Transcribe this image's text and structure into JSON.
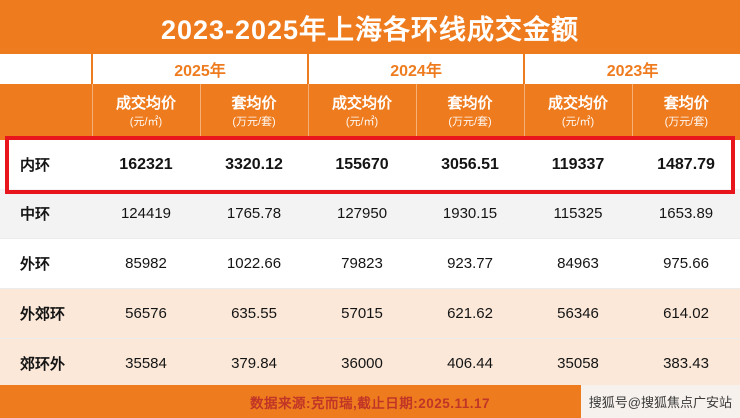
{
  "title": "2023-2025年上海各环线成交金额",
  "colors": {
    "accent_orange": "#ee7c1f",
    "highlight_red": "#e8151c",
    "footer_text_red": "#c13527",
    "row_tint": "#fbe8d9"
  },
  "chart_data": {
    "type": "table",
    "title": "2023-2025年上海各环线成交金额",
    "year_groups": [
      "2025年",
      "2024年",
      "2023年"
    ],
    "columns": [
      {
        "label": "成交均价",
        "unit": "(元/㎡)"
      },
      {
        "label": "套均价",
        "unit": "(万元/套)"
      },
      {
        "label": "成交均价",
        "unit": "(元/㎡)"
      },
      {
        "label": "套均价",
        "unit": "(万元/套)"
      },
      {
        "label": "成交均价",
        "unit": "(元/㎡)"
      },
      {
        "label": "套均价",
        "unit": "(万元/套)"
      }
    ],
    "rows": [
      {
        "name": "内环",
        "highlighted": true,
        "values": [
          "162321",
          "3320.12",
          "155670",
          "3056.51",
          "119337",
          "1487.79"
        ]
      },
      {
        "name": "中环",
        "highlighted": false,
        "values": [
          "124419",
          "1765.78",
          "127950",
          "1930.15",
          "115325",
          "1653.89"
        ]
      },
      {
        "name": "外环",
        "highlighted": false,
        "values": [
          "85982",
          "1022.66",
          "79823",
          "923.77",
          "84963",
          "975.66"
        ]
      },
      {
        "name": "外郊环",
        "highlighted": false,
        "values": [
          "56576",
          "635.55",
          "57015",
          "621.62",
          "56346",
          "614.02"
        ]
      },
      {
        "name": "郊环外",
        "highlighted": false,
        "values": [
          "35584",
          "379.84",
          "36000",
          "406.44",
          "35058",
          "383.43"
        ]
      }
    ]
  },
  "footer": {
    "source": "数据来源:克而瑞,截止日期:2025.11.17"
  },
  "watermark": "搜狐号@搜狐焦点广安站"
}
